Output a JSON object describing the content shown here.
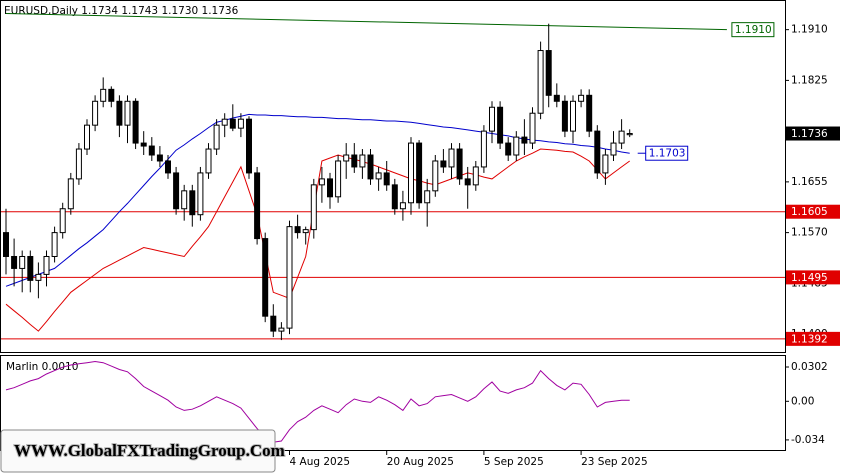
{
  "watermark": "WWW.GlobalFXTradingGroup.Com",
  "chart_data": [
    {
      "type": "candlestick",
      "title": "EURUSD,Daily  1.1734 1.1743 1.1730 1.1736",
      "categories": [
        null,
        null,
        null,
        null,
        null,
        null,
        null,
        null,
        null,
        null,
        null,
        null,
        null,
        null,
        null,
        null,
        null,
        null,
        null,
        null,
        null,
        null,
        null,
        null,
        null,
        null,
        null,
        null,
        null,
        null,
        null,
        null,
        null,
        null,
        null,
        "4 Aug 2025",
        null,
        null,
        null,
        null,
        null,
        null,
        null,
        null,
        null,
        null,
        null,
        "20 Aug 2025",
        null,
        null,
        null,
        null,
        null,
        null,
        null,
        null,
        null,
        null,
        null,
        "5 Sep 2025",
        null,
        null,
        null,
        null,
        null,
        null,
        null,
        null,
        null,
        null,
        null,
        "23 Sep 2025",
        null,
        null,
        null,
        null,
        null,
        null
      ],
      "open": [
        1.157,
        1.153,
        1.151,
        1.153,
        1.149,
        1.15,
        1.153,
        1.157,
        1.161,
        1.166,
        1.171,
        1.175,
        1.179,
        1.181,
        1.179,
        1.175,
        1.179,
        1.172,
        1.1715,
        1.17,
        1.169,
        1.167,
        1.161,
        1.164,
        1.16,
        1.167,
        1.171,
        1.175,
        1.176,
        1.1745,
        1.176,
        1.167,
        1.156,
        1.143,
        1.1405,
        1.141,
        1.158,
        1.157,
        1.1575,
        1.165,
        1.166,
        1.163,
        1.169,
        1.17,
        1.168,
        1.17,
        1.166,
        1.167,
        1.165,
        1.161,
        1.162,
        1.172,
        1.162,
        1.164,
        1.169,
        1.168,
        1.171,
        1.166,
        1.165,
        1.168,
        1.174,
        1.178,
        1.172,
        1.17,
        1.173,
        1.172,
        1.177,
        1.1875,
        1.18,
        1.179,
        1.174,
        1.179,
        1.18,
        1.174,
        1.167,
        1.17,
        1.172,
        1.1734
      ],
      "high": [
        1.161,
        1.156,
        1.154,
        1.154,
        1.152,
        1.154,
        1.158,
        1.162,
        1.167,
        1.172,
        1.176,
        1.18,
        1.183,
        1.1815,
        1.18,
        1.18,
        1.1795,
        1.174,
        1.173,
        1.1715,
        1.17,
        1.168,
        1.165,
        1.165,
        1.168,
        1.172,
        1.176,
        1.177,
        1.1785,
        1.177,
        1.1765,
        1.168,
        1.157,
        1.145,
        1.142,
        1.159,
        1.16,
        1.158,
        1.166,
        1.168,
        1.167,
        1.17,
        1.172,
        1.172,
        1.171,
        1.171,
        1.168,
        1.169,
        1.166,
        1.164,
        1.173,
        1.1725,
        1.166,
        1.17,
        1.171,
        1.172,
        1.172,
        1.168,
        1.169,
        1.175,
        1.179,
        1.179,
        1.173,
        1.174,
        1.176,
        1.178,
        1.189,
        1.192,
        1.182,
        1.18,
        1.18,
        1.181,
        1.181,
        1.175,
        1.171,
        1.174,
        1.176,
        1.1743
      ],
      "low": [
        1.15,
        1.148,
        1.147,
        1.147,
        1.146,
        1.148,
        1.152,
        1.156,
        1.16,
        1.165,
        1.17,
        1.174,
        1.178,
        1.178,
        1.173,
        1.172,
        1.171,
        1.17,
        1.169,
        1.168,
        1.166,
        1.16,
        1.159,
        1.158,
        1.159,
        1.166,
        1.17,
        1.173,
        1.174,
        1.173,
        1.166,
        1.155,
        1.142,
        1.1395,
        1.139,
        1.14,
        1.156,
        1.155,
        1.156,
        1.162,
        1.161,
        1.162,
        1.166,
        1.167,
        1.166,
        1.165,
        1.164,
        1.164,
        1.16,
        1.159,
        1.16,
        1.161,
        1.158,
        1.163,
        1.167,
        1.166,
        1.165,
        1.161,
        1.164,
        1.167,
        1.172,
        1.171,
        1.169,
        1.169,
        1.17,
        1.171,
        1.176,
        1.178,
        1.178,
        1.173,
        1.172,
        1.178,
        1.173,
        1.166,
        1.165,
        1.169,
        1.171,
        1.173
      ],
      "close": [
        1.153,
        1.151,
        1.153,
        1.149,
        1.15,
        1.153,
        1.157,
        1.161,
        1.166,
        1.171,
        1.175,
        1.179,
        1.181,
        1.179,
        1.175,
        1.179,
        1.172,
        1.1715,
        1.17,
        1.169,
        1.167,
        1.161,
        1.164,
        1.16,
        1.167,
        1.171,
        1.175,
        1.176,
        1.1745,
        1.176,
        1.167,
        1.156,
        1.143,
        1.1405,
        1.141,
        1.158,
        1.157,
        1.1575,
        1.165,
        1.166,
        1.163,
        1.169,
        1.17,
        1.168,
        1.17,
        1.166,
        1.167,
        1.165,
        1.161,
        1.162,
        1.172,
        1.162,
        1.164,
        1.169,
        1.168,
        1.171,
        1.166,
        1.165,
        1.168,
        1.174,
        1.178,
        1.172,
        1.17,
        1.173,
        1.172,
        1.177,
        1.1875,
        1.18,
        1.179,
        1.174,
        1.179,
        1.18,
        1.174,
        1.167,
        1.17,
        1.172,
        1.174,
        1.1736
      ],
      "last_price_label": "1.1736",
      "lines": [
        {
          "color": "#0000cc",
          "end_label": "1.1703",
          "values": [
            1.148,
            1.1485,
            1.149,
            1.1495,
            1.15,
            1.1505,
            1.151,
            1.1521,
            1.1532,
            1.1543,
            1.1553,
            1.1564,
            1.1575,
            1.159,
            1.1605,
            1.1619,
            1.1634,
            1.1649,
            1.1664,
            1.1678,
            1.1693,
            1.1708,
            1.1717,
            1.1727,
            1.1736,
            1.1746,
            1.1755,
            1.1758,
            1.1762,
            1.1765,
            1.1768,
            1.1767,
            1.1767,
            1.1766,
            1.1766,
            1.1765,
            1.1764,
            1.1764,
            1.1763,
            1.1763,
            1.1762,
            1.1761,
            1.1761,
            1.176,
            1.1759,
            1.1759,
            1.1758,
            1.1757,
            1.1757,
            1.1756,
            1.1755,
            1.1753,
            1.1751,
            1.1749,
            1.1747,
            1.1746,
            1.1744,
            1.1742,
            1.174,
            1.1738,
            1.1736,
            1.1734,
            1.1732,
            1.1729,
            1.1727,
            1.1725,
            1.1724,
            1.1722,
            1.1721,
            1.1719,
            1.1718,
            1.1716,
            1.1715,
            1.1713,
            1.171,
            1.1708,
            1.1705,
            1.1703
          ]
        },
        {
          "color": "#e00000",
          "values": [
            1.145,
            1.1439,
            1.1428,
            1.1416,
            1.1405,
            1.1421,
            1.1438,
            1.1454,
            1.147,
            1.148,
            1.149,
            1.15,
            1.151,
            1.1517,
            1.1524,
            1.1531,
            1.1538,
            1.1545,
            1.1542,
            1.1539,
            1.1536,
            1.1533,
            1.153,
            1.1547,
            1.1563,
            1.158,
            1.1605,
            1.163,
            1.1655,
            1.168,
            1.164,
            1.16,
            1.1535,
            1.147,
            1.1465,
            1.146,
            1.1495,
            1.153,
            1.161,
            1.169,
            1.1695,
            1.17,
            1.1696,
            1.1693,
            1.1689,
            1.1685,
            1.168,
            1.1675,
            1.167,
            1.1665,
            1.166,
            1.1657,
            1.1653,
            1.165,
            1.1655,
            1.166,
            1.1665,
            1.167,
            1.1667,
            1.1663,
            1.166,
            1.167,
            1.168,
            1.169,
            1.1697,
            1.1703,
            1.171,
            1.1709,
            1.1708,
            1.1706,
            1.1705,
            1.1698,
            1.169,
            1.1675,
            1.166,
            1.167,
            1.168,
            1.169
          ]
        }
      ],
      "levels": [
        {
          "value": 1.1605,
          "label": "1.1605",
          "color": "#e00000"
        },
        {
          "value": 1.1495,
          "label": "1.1495",
          "color": "#e00000"
        },
        {
          "value": 1.1392,
          "label": "1.1392",
          "color": "#e00000"
        }
      ],
      "trendline": {
        "x": [
          0,
          89
        ],
        "values": [
          1.1937,
          1.191
        ],
        "label": "1.1910",
        "color": "#006400"
      },
      "ylim": [
        1.137,
        1.1958
      ],
      "yticks": [
        {
          "value": 1.14,
          "label": "1.1400"
        },
        1.1485,
        {
          "value": 1.157,
          "label": "1.1570"
        },
        1.1655,
        1.1825,
        {
          "value": 1.191,
          "label": "1.1910"
        }
      ]
    },
    {
      "type": "line",
      "title": "Marlin 0.0010",
      "color": "#a000a0",
      "values": [
        0.01,
        0.012,
        0.015,
        0.018,
        0.02,
        0.024,
        0.027,
        0.03,
        0.032,
        0.033,
        0.034,
        0.035,
        0.034,
        0.031,
        0.028,
        0.026,
        0.02,
        0.013,
        0.009,
        0.005,
        0.001,
        -0.005,
        -0.008,
        -0.007,
        -0.004,
        0.0,
        0.004,
        0.001,
        -0.002,
        -0.006,
        -0.015,
        -0.024,
        -0.031,
        -0.036,
        -0.035,
        -0.025,
        -0.018,
        -0.014,
        -0.008,
        -0.004,
        -0.007,
        -0.01,
        -0.003,
        0.002,
        0.0,
        -0.001,
        0.004,
        0.001,
        -0.003,
        -0.008,
        0.002,
        -0.004,
        -0.002,
        0.004,
        0.005,
        0.006,
        0.003,
        0.0,
        0.004,
        0.011,
        0.017,
        0.009,
        0.007,
        0.01,
        0.012,
        0.016,
        0.027,
        0.02,
        0.014,
        0.01,
        0.016,
        0.015,
        0.006,
        -0.005,
        -0.001,
        0.0,
        0.001,
        0.001
      ],
      "ylim": [
        -0.042,
        0.039
      ],
      "yticks": [
        0.0302,
        {
          "value": 0,
          "label": "0.00"
        },
        -0.034
      ]
    }
  ]
}
